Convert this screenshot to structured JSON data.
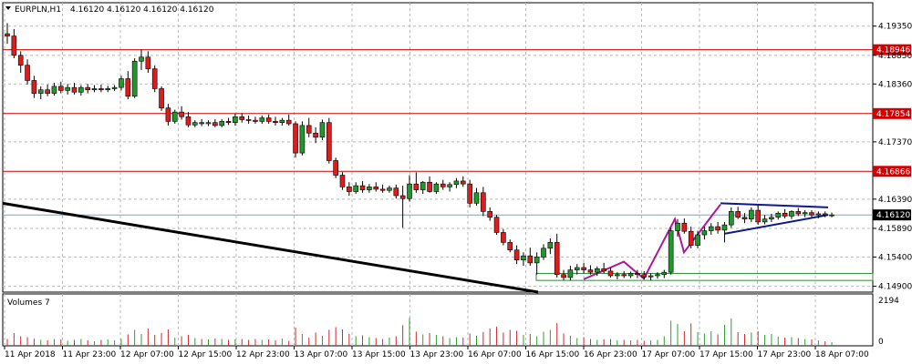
{
  "window": {
    "title": "EURPLN,H1",
    "ohlc_readout": "4.16120 4.16120 4.16120 4.16120"
  },
  "chart_data": [
    {
      "type": "candlestick",
      "symbol": "EURPLN",
      "timeframe": "H1",
      "ylim": [
        4.148,
        4.1975
      ],
      "y_ticks": [
        "4.19350",
        "4.18850",
        "4.18360",
        "4.17370",
        "4.16390",
        "4.15890",
        "4.15400",
        "4.14900"
      ],
      "x_ticks": [
        "11 Apr 2018",
        "11 Apr 23:00",
        "12 Apr 07:00",
        "12 Apr 15:00",
        "12 Apr 23:00",
        "13 Apr 07:00",
        "13 Apr 15:00",
        "13 Apr 23:00",
        "16 Apr 07:00",
        "16 Apr 15:00",
        "16 Apr 23:00",
        "17 Apr 07:00",
        "17 Apr 15:00",
        "17 Apr 23:00",
        "18 Apr 07:00"
      ],
      "current_price": "4.16120",
      "levels": [
        {
          "value": 4.18946,
          "label": "4.18946",
          "style": "solid"
        },
        {
          "value": 4.17854,
          "label": "4.17854",
          "style": "solid"
        },
        {
          "value": 4.16866,
          "label": "4.16866",
          "style": "solid"
        }
      ],
      "candles": [
        [
          4.1922,
          4.194,
          4.1905,
          4.1918
        ],
        [
          4.1918,
          4.193,
          4.188,
          4.1885
        ],
        [
          4.1885,
          4.1892,
          4.1855,
          4.1868
        ],
        [
          4.1868,
          4.1878,
          4.1835,
          4.1842
        ],
        [
          4.1842,
          4.185,
          4.1812,
          4.182
        ],
        [
          4.182,
          4.1832,
          4.181,
          4.1826
        ],
        [
          4.1826,
          4.1835,
          4.1815,
          4.182
        ],
        [
          4.182,
          4.1838,
          4.1816,
          4.1832
        ],
        [
          4.1832,
          4.184,
          4.182,
          4.1825
        ],
        [
          4.1825,
          4.1836,
          4.1818,
          4.183
        ],
        [
          4.183,
          4.1838,
          4.1818,
          4.1822
        ],
        [
          4.1822,
          4.1834,
          4.1816,
          4.183
        ],
        [
          4.183,
          4.1836,
          4.182,
          4.1826
        ],
        [
          4.1826,
          4.1834,
          4.1822,
          4.1828
        ],
        [
          4.1828,
          4.1835,
          4.1822,
          4.1826
        ],
        [
          4.1826,
          4.1833,
          4.1822,
          4.1828
        ],
        [
          4.1828,
          4.1834,
          4.1824,
          4.183
        ],
        [
          4.183,
          4.185,
          4.1825,
          4.1845
        ],
        [
          4.1845,
          4.1858,
          4.181,
          4.1815
        ],
        [
          4.1815,
          4.188,
          4.1812,
          4.1875
        ],
        [
          4.1875,
          4.1895,
          4.186,
          4.1882
        ],
        [
          4.1882,
          4.1892,
          4.1855,
          4.1862
        ],
        [
          4.1862,
          4.1868,
          4.1822,
          4.1828
        ],
        [
          4.1828,
          4.1832,
          4.179,
          4.1795
        ],
        [
          4.1795,
          4.1802,
          4.1765,
          4.1772
        ],
        [
          4.1772,
          4.1792,
          4.1768,
          4.1788
        ],
        [
          4.1788,
          4.1798,
          4.1775,
          4.178
        ],
        [
          4.178,
          4.1788,
          4.1762,
          4.1766
        ],
        [
          4.1766,
          4.1774,
          4.1762,
          4.177
        ],
        [
          4.177,
          4.1776,
          4.1764,
          4.1768
        ],
        [
          4.1768,
          4.1774,
          4.1764,
          4.177
        ],
        [
          4.177,
          4.1776,
          4.1762,
          4.1765
        ],
        [
          4.1765,
          4.1776,
          4.1762,
          4.1772
        ],
        [
          4.1772,
          4.1778,
          4.1766,
          4.177
        ],
        [
          4.177,
          4.1785,
          4.1765,
          4.178
        ],
        [
          4.178,
          4.1786,
          4.177,
          4.1775
        ],
        [
          4.1775,
          4.1782,
          4.1768,
          4.1774
        ],
        [
          4.1774,
          4.178,
          4.1768,
          4.1772
        ],
        [
          4.1772,
          4.1782,
          4.1768,
          4.1778
        ],
        [
          4.1778,
          4.1784,
          4.1768,
          4.1772
        ],
        [
          4.1772,
          4.178,
          4.1765,
          4.177
        ],
        [
          4.177,
          4.1778,
          4.1765,
          4.1774
        ],
        [
          4.1774,
          4.1784,
          4.1765,
          4.1768
        ],
        [
          4.1768,
          4.1772,
          4.171,
          4.1718
        ],
        [
          4.1718,
          4.1772,
          4.1714,
          4.1765
        ],
        [
          4.1765,
          4.1778,
          4.1745,
          4.1752
        ],
        [
          4.1752,
          4.1762,
          4.1735,
          4.1745
        ],
        [
          4.1745,
          4.1775,
          4.174,
          4.177
        ],
        [
          4.177,
          4.1778,
          4.17,
          4.1705
        ],
        [
          4.1705,
          4.171,
          4.1675,
          4.168
        ],
        [
          4.168,
          4.1685,
          4.1655,
          4.166
        ],
        [
          4.166,
          4.1668,
          4.1645,
          4.1652
        ],
        [
          4.1652,
          4.1668,
          4.1648,
          4.1662
        ],
        [
          4.1662,
          4.167,
          4.165,
          4.1655
        ],
        [
          4.1655,
          4.1665,
          4.165,
          4.166
        ],
        [
          4.166,
          4.1668,
          4.1652,
          4.1656
        ],
        [
          4.1656,
          4.1664,
          4.165,
          4.1654
        ],
        [
          4.1654,
          4.1662,
          4.165,
          4.1658
        ],
        [
          4.1658,
          4.1664,
          4.164,
          4.1645
        ],
        [
          4.1645,
          4.1662,
          4.159,
          4.164
        ],
        [
          4.164,
          4.168,
          4.1635,
          4.1665
        ],
        [
          4.1665,
          4.1685,
          4.165,
          4.1655
        ],
        [
          4.1655,
          4.167,
          4.1648,
          4.1668
        ],
        [
          4.1668,
          4.1678,
          4.165,
          4.1652
        ],
        [
          4.1652,
          4.1668,
          4.1648,
          4.1665
        ],
        [
          4.1665,
          4.1672,
          4.1655,
          4.166
        ],
        [
          4.166,
          4.1668,
          4.1652,
          4.1664
        ],
        [
          4.1664,
          4.1675,
          4.1658,
          4.167
        ],
        [
          4.167,
          4.1678,
          4.166,
          4.1665
        ],
        [
          4.1665,
          4.1672,
          4.1625,
          4.1632
        ],
        [
          4.1632,
          4.1658,
          4.1628,
          4.165
        ],
        [
          4.165,
          4.166,
          4.161,
          4.1618
        ],
        [
          4.1618,
          4.1625,
          4.1602,
          4.1608
        ],
        [
          4.1608,
          4.1612,
          4.1578,
          4.1582
        ],
        [
          4.1582,
          4.1588,
          4.156,
          4.1565
        ],
        [
          4.1565,
          4.157,
          4.1548,
          4.1552
        ],
        [
          4.1552,
          4.156,
          4.1528,
          4.1535
        ],
        [
          4.1535,
          4.1548,
          4.1525,
          4.1542
        ],
        [
          4.1542,
          4.1556,
          4.1525,
          4.153
        ],
        [
          4.153,
          4.1548,
          4.151,
          4.154
        ],
        [
          4.154,
          4.1562,
          4.1535,
          4.1555
        ],
        [
          4.1555,
          4.1572,
          4.1545,
          4.1565
        ],
        [
          4.1565,
          4.158,
          4.1505,
          4.151
        ],
        [
          4.151,
          4.1518,
          4.15,
          4.1505
        ],
        [
          4.1505,
          4.1525,
          4.15,
          4.1518
        ],
        [
          4.1518,
          4.1528,
          4.151,
          4.1522
        ],
        [
          4.1522,
          4.153,
          4.1512,
          4.1518
        ],
        [
          4.1518,
          4.1526,
          4.151,
          4.1514
        ],
        [
          4.1514,
          4.1524,
          4.1508,
          4.152
        ],
        [
          4.152,
          4.153,
          4.1512,
          4.1516
        ],
        [
          4.1516,
          4.1522,
          4.1505,
          4.1508
        ],
        [
          4.1508,
          4.1514,
          4.1502,
          4.151
        ],
        [
          4.151,
          4.1516,
          4.1504,
          4.1508
        ],
        [
          4.1508,
          4.1515,
          4.1504,
          4.1512
        ],
        [
          4.1512,
          4.1518,
          4.1504,
          4.151
        ],
        [
          4.151,
          4.1516,
          4.1502,
          4.1506
        ],
        [
          4.1506,
          4.1512,
          4.15,
          4.1508
        ],
        [
          4.1508,
          4.1514,
          4.1503,
          4.151
        ],
        [
          4.151,
          4.1518,
          4.1504,
          4.1514
        ],
        [
          4.1514,
          4.159,
          4.151,
          4.1585
        ],
        [
          4.1585,
          4.1605,
          4.1575,
          4.1598
        ],
        [
          4.1598,
          4.1606,
          4.158,
          4.1584
        ],
        [
          4.1584,
          4.1592,
          4.1555,
          4.156
        ],
        [
          4.156,
          4.1585,
          4.1555,
          4.1578
        ],
        [
          4.1578,
          4.1592,
          4.157,
          4.1585
        ],
        [
          4.1585,
          4.1598,
          4.1578,
          4.1592
        ],
        [
          4.1592,
          4.16,
          4.158,
          4.1586
        ],
        [
          4.1586,
          4.16,
          4.1565,
          4.1595
        ],
        [
          4.1595,
          4.1625,
          4.159,
          4.1618
        ],
        [
          4.1618,
          4.1626,
          4.1605,
          4.1608
        ],
        [
          4.1608,
          4.1615,
          4.1598,
          4.1605
        ],
        [
          4.1605,
          4.1625,
          4.16,
          4.162
        ],
        [
          4.162,
          4.1628,
          4.1595,
          4.16
        ],
        [
          4.16,
          4.1612,
          4.1596,
          4.1605
        ],
        [
          4.1605,
          4.1614,
          4.16,
          4.1608
        ],
        [
          4.1608,
          4.1618,
          4.1604,
          4.1615
        ],
        [
          4.1615,
          4.1622,
          4.1606,
          4.161
        ],
        [
          4.161,
          4.162,
          4.1605,
          4.1618
        ],
        [
          4.1618,
          4.1624,
          4.161,
          4.1614
        ],
        [
          4.1614,
          4.162,
          4.1608,
          4.1616
        ],
        [
          4.1616,
          4.162,
          4.1608,
          4.1612
        ],
        [
          4.1612,
          4.1618,
          4.1606,
          4.1614
        ],
        [
          4.1614,
          4.1618,
          4.1608,
          4.1612
        ],
        [
          4.1612,
          4.1616,
          4.1608,
          4.1612
        ]
      ],
      "volumes_panel": {
        "label": "Volumes 7",
        "ylim": [
          0,
          2194
        ],
        "y_ticks": [
          "2194",
          "0"
        ],
        "values": [
          300,
          560,
          420,
          380,
          310,
          260,
          240,
          300,
          280,
          220,
          260,
          300,
          240,
          200,
          260,
          280,
          240,
          300,
          500,
          700,
          520,
          760,
          480,
          560,
          720,
          360,
          420,
          480,
          340,
          300,
          280,
          320,
          300,
          260,
          280,
          300,
          260,
          300,
          260,
          280,
          240,
          320,
          220,
          800,
          520,
          360,
          580,
          440,
          700,
          820,
          720,
          520,
          420,
          460,
          380,
          340,
          300,
          360,
          420,
          900,
          1220,
          620,
          500,
          560,
          480,
          420,
          340,
          380,
          360,
          540,
          440,
          600,
          760,
          840,
          580,
          700,
          660,
          480,
          520,
          420,
          620,
          700,
          1000,
          540,
          440,
          340,
          380,
          300,
          260,
          280,
          300,
          240,
          260,
          240,
          260,
          220,
          240,
          260,
          420,
          1100,
          960,
          640,
          980,
          600,
          540,
          640,
          500,
          920,
          1200,
          600,
          520,
          580,
          640,
          480,
          520,
          400,
          360,
          380,
          340,
          300,
          280,
          240,
          200,
          160
        ]
      }
    }
  ]
}
